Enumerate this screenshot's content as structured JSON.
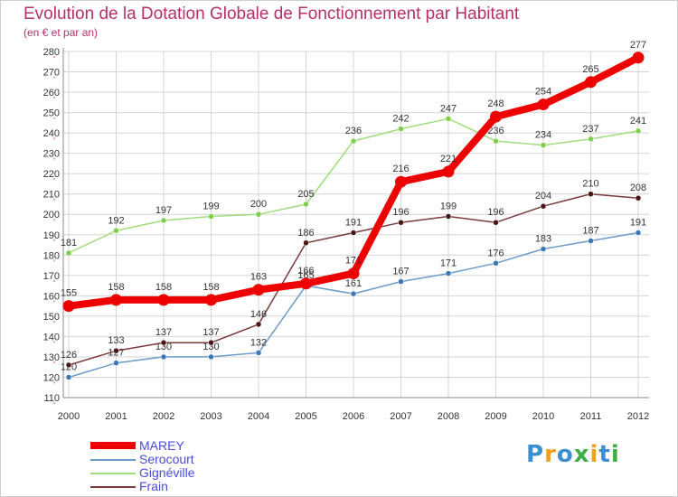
{
  "title": "Evolution de la Dotation Globale de Fonctionnement par Habitant",
  "subtitle": "(en € et par an)",
  "logo": "Proxiti",
  "colors": {
    "title": "#b5306a",
    "grid": "#cfcfcf",
    "marey": "#ee0000",
    "serocourt": "#6b9bc8",
    "gigneville": "#9fdc7c",
    "frain": "#7a3a3a"
  },
  "chart_data": {
    "type": "line",
    "title": "Evolution de la Dotation Globale de Fonctionnement par Habitant",
    "subtitle": "(en € et par an)",
    "xlabel": "",
    "ylabel": "",
    "categories": [
      "2000",
      "2001",
      "2002",
      "2003",
      "2004",
      "2005",
      "2006",
      "2007",
      "2008",
      "2009",
      "2010",
      "2011",
      "2012"
    ],
    "ylim": [
      110,
      280
    ],
    "ytick_step": 10,
    "grid": true,
    "legend_position": "bottom-left",
    "series": [
      {
        "key": "gigneville",
        "name": "Gignéville",
        "color": "#9fdc7c",
        "marker_color": "#7fcd4a",
        "width": 1.5,
        "values": [
          181,
          192,
          197,
          199,
          200,
          205,
          236,
          242,
          247,
          236,
          234,
          237,
          241
        ]
      },
      {
        "key": "serocourt",
        "name": "Serocourt",
        "color": "#6b9bc8",
        "marker_color": "#3a78b8",
        "width": 1.5,
        "values": [
          120,
          127,
          130,
          130,
          132,
          165,
          161,
          167,
          171,
          176,
          183,
          187,
          191
        ]
      },
      {
        "key": "frain",
        "name": "Frain",
        "color": "#7a3a3a",
        "marker_color": "#4a1515",
        "width": 1.5,
        "values": [
          126,
          133,
          137,
          137,
          146,
          186,
          191,
          196,
          199,
          196,
          204,
          210,
          208
        ]
      },
      {
        "key": "marey",
        "name": "MAREY",
        "color": "#ee0000",
        "marker_color": "#ee0000",
        "width": 8,
        "values": [
          155,
          158,
          158,
          158,
          163,
          166,
          171,
          216,
          221,
          248,
          254,
          265,
          277
        ]
      }
    ]
  },
  "legend": [
    {
      "key": "marey",
      "name": "MAREY",
      "color": "#ee0000",
      "text_color": "#4a4adc"
    },
    {
      "key": "serocourt",
      "name": "Serocourt",
      "color": "#6b9bc8",
      "text_color": "#4a4adc"
    },
    {
      "key": "gigneville",
      "name": "Gignéville",
      "color": "#9fdc7c",
      "text_color": "#4a4adc"
    },
    {
      "key": "frain",
      "name": "Frain",
      "color": "#7a3a3a",
      "text_color": "#4a4adc"
    }
  ]
}
